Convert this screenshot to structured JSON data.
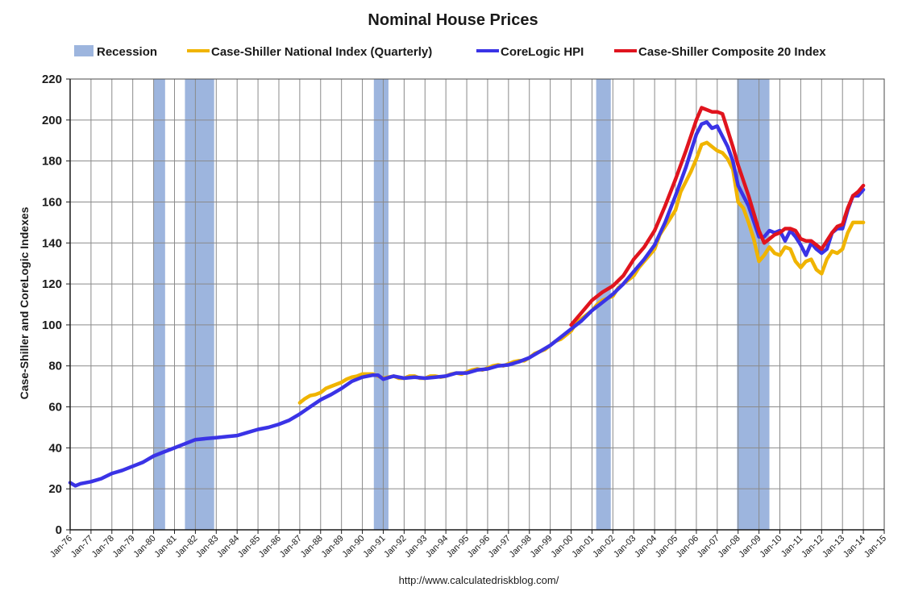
{
  "chart_data": {
    "type": "line",
    "title": "Nominal House Prices",
    "ylabel": "Case-Shiller and CoreLogic Indexes",
    "xlabel": "",
    "source": "http://www.calculatedriskblog.com/",
    "ylim": [
      0,
      220
    ],
    "yticks": [
      0,
      20,
      40,
      60,
      80,
      100,
      120,
      140,
      160,
      180,
      200,
      220
    ],
    "xlim": [
      1976.0,
      2015.0
    ],
    "xtick_labels": [
      "Jan-76",
      "Jan-77",
      "Jan-78",
      "Jan-79",
      "Jan-80",
      "Jan-81",
      "Jan-82",
      "Jan-83",
      "Jan-84",
      "Jan-85",
      "Jan-86",
      "Jan-87",
      "Jan-88",
      "Jan-89",
      "Jan-90",
      "Jan-91",
      "Jan-92",
      "Jan-93",
      "Jan-94",
      "Jan-95",
      "Jan-96",
      "Jan-97",
      "Jan-98",
      "Jan-99",
      "Jan-00",
      "Jan-01",
      "Jan-02",
      "Jan-03",
      "Jan-04",
      "Jan-05",
      "Jan-06",
      "Jan-07",
      "Jan-08",
      "Jan-09",
      "Jan-10",
      "Jan-11",
      "Jan-12",
      "Jan-13",
      "Jan-14",
      "Jan-15"
    ],
    "grid": true,
    "legend_position": "top",
    "recessions": [
      [
        1980.0,
        1980.55
      ],
      [
        1981.5,
        1982.9
      ],
      [
        1990.55,
        1991.25
      ],
      [
        2001.2,
        2001.9
      ],
      [
        2007.95,
        2009.5
      ]
    ],
    "series": [
      {
        "name": "Case-Shiller National Index (Quarterly)",
        "color": "#f0b400",
        "points": [
          [
            1987.0,
            62
          ],
          [
            1987.25,
            64
          ],
          [
            1987.5,
            65.5
          ],
          [
            1987.75,
            66
          ],
          [
            1988.0,
            67
          ],
          [
            1988.25,
            69
          ],
          [
            1988.5,
            70
          ],
          [
            1988.75,
            71
          ],
          [
            1989.0,
            72
          ],
          [
            1989.25,
            73.5
          ],
          [
            1989.5,
            74.5
          ],
          [
            1989.75,
            75
          ],
          [
            1990.0,
            76
          ],
          [
            1990.25,
            76
          ],
          [
            1990.5,
            76
          ],
          [
            1990.75,
            75
          ],
          [
            1991.0,
            74
          ],
          [
            1991.25,
            74.5
          ],
          [
            1991.5,
            75
          ],
          [
            1991.75,
            74
          ],
          [
            1992.0,
            74
          ],
          [
            1992.25,
            75
          ],
          [
            1992.5,
            75
          ],
          [
            1992.75,
            74
          ],
          [
            1993.0,
            74
          ],
          [
            1993.25,
            75
          ],
          [
            1993.5,
            75
          ],
          [
            1993.75,
            74.5
          ],
          [
            1994.0,
            75
          ],
          [
            1994.25,
            76
          ],
          [
            1994.5,
            76.5
          ],
          [
            1994.75,
            76
          ],
          [
            1995.0,
            77
          ],
          [
            1995.25,
            78
          ],
          [
            1995.5,
            78.5
          ],
          [
            1995.75,
            78
          ],
          [
            1996.0,
            79
          ],
          [
            1996.25,
            80
          ],
          [
            1996.5,
            80.5
          ],
          [
            1996.75,
            80
          ],
          [
            1997.0,
            81
          ],
          [
            1997.25,
            82
          ],
          [
            1997.5,
            82.5
          ],
          [
            1997.75,
            82.5
          ],
          [
            1998.0,
            84
          ],
          [
            1998.25,
            86
          ],
          [
            1998.5,
            87
          ],
          [
            1998.75,
            88
          ],
          [
            1999.0,
            90
          ],
          [
            1999.25,
            92
          ],
          [
            1999.5,
            93
          ],
          [
            1999.75,
            95
          ],
          [
            2000.0,
            97
          ],
          [
            2000.25,
            101
          ],
          [
            2000.5,
            103
          ],
          [
            2000.75,
            105
          ],
          [
            2001.0,
            107
          ],
          [
            2001.25,
            110
          ],
          [
            2001.5,
            112
          ],
          [
            2001.75,
            113
          ],
          [
            2002.0,
            114
          ],
          [
            2002.25,
            118
          ],
          [
            2002.5,
            120
          ],
          [
            2002.75,
            122
          ],
          [
            2003.0,
            124
          ],
          [
            2003.25,
            128
          ],
          [
            2003.5,
            131
          ],
          [
            2003.75,
            134
          ],
          [
            2004.0,
            137
          ],
          [
            2004.25,
            144
          ],
          [
            2004.5,
            148
          ],
          [
            2004.75,
            152
          ],
          [
            2005.0,
            156
          ],
          [
            2005.25,
            165
          ],
          [
            2005.5,
            170
          ],
          [
            2005.75,
            175
          ],
          [
            2006.0,
            181
          ],
          [
            2006.25,
            188
          ],
          [
            2006.5,
            189
          ],
          [
            2006.75,
            187
          ],
          [
            2007.0,
            185
          ],
          [
            2007.25,
            184
          ],
          [
            2007.5,
            181
          ],
          [
            2007.75,
            176
          ],
          [
            2008.0,
            160
          ],
          [
            2008.25,
            157
          ],
          [
            2008.5,
            150
          ],
          [
            2008.75,
            142
          ],
          [
            2009.0,
            131
          ],
          [
            2009.25,
            134
          ],
          [
            2009.5,
            138
          ],
          [
            2009.75,
            135
          ],
          [
            2010.0,
            134
          ],
          [
            2010.25,
            138
          ],
          [
            2010.5,
            137
          ],
          [
            2010.75,
            131
          ],
          [
            2011.0,
            128
          ],
          [
            2011.25,
            131
          ],
          [
            2011.5,
            132
          ],
          [
            2011.75,
            127
          ],
          [
            2012.0,
            125
          ],
          [
            2012.25,
            132
          ],
          [
            2012.5,
            136
          ],
          [
            2012.75,
            135
          ],
          [
            2013.0,
            137
          ],
          [
            2013.25,
            145
          ],
          [
            2013.5,
            150
          ],
          [
            2013.75,
            150
          ],
          [
            2014.0,
            150
          ]
        ]
      },
      {
        "name": "CoreLogic HPI",
        "color": "#3a33e6",
        "points": [
          [
            1976.0,
            23
          ],
          [
            1976.25,
            21.5
          ],
          [
            1976.5,
            22.5
          ],
          [
            1977.0,
            23.5
          ],
          [
            1977.5,
            25
          ],
          [
            1978.0,
            27.5
          ],
          [
            1978.5,
            29
          ],
          [
            1979.0,
            31
          ],
          [
            1979.5,
            33
          ],
          [
            1980.0,
            36
          ],
          [
            1980.5,
            38
          ],
          [
            1981.0,
            40
          ],
          [
            1981.5,
            42
          ],
          [
            1982.0,
            44
          ],
          [
            1982.5,
            44.5
          ],
          [
            1983.0,
            45
          ],
          [
            1983.5,
            45.5
          ],
          [
            1984.0,
            46
          ],
          [
            1984.5,
            47.5
          ],
          [
            1985.0,
            49
          ],
          [
            1985.5,
            50
          ],
          [
            1986.0,
            51.5
          ],
          [
            1986.5,
            53.5
          ],
          [
            1987.0,
            56.5
          ],
          [
            1987.5,
            60
          ],
          [
            1988.0,
            63.5
          ],
          [
            1988.5,
            66
          ],
          [
            1989.0,
            69
          ],
          [
            1989.5,
            72.5
          ],
          [
            1990.0,
            74.5
          ],
          [
            1990.5,
            75.5
          ],
          [
            1990.75,
            75.5
          ],
          [
            1991.0,
            73.5
          ],
          [
            1991.5,
            75
          ],
          [
            1992.0,
            74
          ],
          [
            1992.5,
            74.5
          ],
          [
            1993.0,
            74
          ],
          [
            1993.5,
            74.5
          ],
          [
            1994.0,
            75
          ],
          [
            1994.5,
            76.5
          ],
          [
            1995.0,
            76.5
          ],
          [
            1995.5,
            78
          ],
          [
            1996.0,
            78.5
          ],
          [
            1996.5,
            80
          ],
          [
            1997.0,
            80.5
          ],
          [
            1997.5,
            82
          ],
          [
            1998.0,
            84
          ],
          [
            1998.5,
            87
          ],
          [
            1999.0,
            90
          ],
          [
            1999.5,
            94
          ],
          [
            2000.0,
            98
          ],
          [
            2000.5,
            102
          ],
          [
            2001.0,
            107
          ],
          [
            2001.5,
            111
          ],
          [
            2002.0,
            115
          ],
          [
            2002.5,
            120
          ],
          [
            2003.0,
            126
          ],
          [
            2003.5,
            132
          ],
          [
            2004.0,
            139
          ],
          [
            2004.5,
            150
          ],
          [
            2005.0,
            163
          ],
          [
            2005.5,
            177
          ],
          [
            2006.0,
            193
          ],
          [
            2006.25,
            198
          ],
          [
            2006.5,
            199
          ],
          [
            2006.75,
            196
          ],
          [
            2007.0,
            197
          ],
          [
            2007.25,
            192
          ],
          [
            2007.5,
            187
          ],
          [
            2007.75,
            180
          ],
          [
            2008.0,
            168
          ],
          [
            2008.5,
            158
          ],
          [
            2009.0,
            143
          ],
          [
            2009.25,
            143
          ],
          [
            2009.5,
            146
          ],
          [
            2009.75,
            145
          ],
          [
            2010.0,
            146
          ],
          [
            2010.25,
            141
          ],
          [
            2010.5,
            146
          ],
          [
            2010.75,
            143
          ],
          [
            2011.0,
            139
          ],
          [
            2011.25,
            134
          ],
          [
            2011.5,
            140
          ],
          [
            2011.75,
            137
          ],
          [
            2012.0,
            135
          ],
          [
            2012.25,
            137
          ],
          [
            2012.5,
            145
          ],
          [
            2012.75,
            147
          ],
          [
            2013.0,
            147
          ],
          [
            2013.25,
            156
          ],
          [
            2013.5,
            163
          ],
          [
            2013.75,
            163
          ],
          [
            2014.0,
            166
          ]
        ]
      },
      {
        "name": "Case-Shiller Composite 20 Index",
        "color": "#e0141e",
        "points": [
          [
            2000.0,
            100
          ],
          [
            2000.5,
            106
          ],
          [
            2001.0,
            112
          ],
          [
            2001.5,
            116
          ],
          [
            2002.0,
            119
          ],
          [
            2002.5,
            124
          ],
          [
            2003.0,
            132
          ],
          [
            2003.5,
            138
          ],
          [
            2004.0,
            146
          ],
          [
            2004.5,
            158
          ],
          [
            2005.0,
            171
          ],
          [
            2005.5,
            185
          ],
          [
            2006.0,
            200
          ],
          [
            2006.25,
            206
          ],
          [
            2006.5,
            205
          ],
          [
            2006.75,
            204
          ],
          [
            2007.0,
            204
          ],
          [
            2007.25,
            203
          ],
          [
            2007.5,
            195
          ],
          [
            2007.75,
            187
          ],
          [
            2008.0,
            178
          ],
          [
            2008.5,
            163
          ],
          [
            2009.0,
            146
          ],
          [
            2009.25,
            140
          ],
          [
            2009.5,
            142
          ],
          [
            2009.75,
            144
          ],
          [
            2010.0,
            145
          ],
          [
            2010.25,
            147
          ],
          [
            2010.5,
            147
          ],
          [
            2010.75,
            146
          ],
          [
            2011.0,
            142
          ],
          [
            2011.25,
            141
          ],
          [
            2011.5,
            141
          ],
          [
            2011.75,
            139
          ],
          [
            2012.0,
            137
          ],
          [
            2012.25,
            141
          ],
          [
            2012.5,
            145
          ],
          [
            2012.75,
            148
          ],
          [
            2013.0,
            149
          ],
          [
            2013.25,
            157
          ],
          [
            2013.5,
            163
          ],
          [
            2013.75,
            165
          ],
          [
            2014.0,
            168
          ]
        ]
      }
    ]
  },
  "legend": {
    "recession_label": "Recession",
    "recession_color": "#9db5de",
    "items": [
      {
        "label": "Case-Shiller National Index (Quarterly)",
        "color": "#f0b400"
      },
      {
        "label": "CoreLogic HPI",
        "color": "#3a33e6"
      },
      {
        "label": "Case-Shiller Composite 20 Index",
        "color": "#e0141e"
      }
    ]
  }
}
